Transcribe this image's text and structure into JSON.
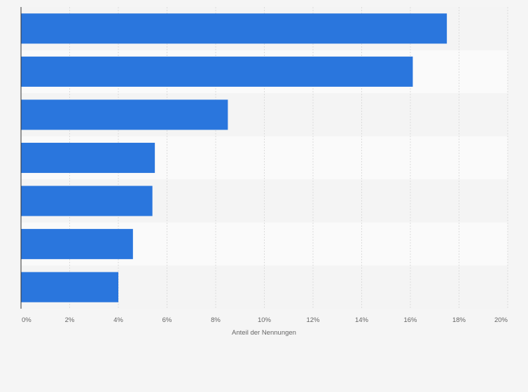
{
  "chart_data": {
    "type": "bar",
    "orientation": "horizontal",
    "categories": [
      "",
      "",
      "",
      "",
      "",
      "",
      ""
    ],
    "values": [
      17.5,
      16.1,
      8.5,
      5.5,
      5.4,
      4.6,
      4.0
    ],
    "xlabel": "Anteil der Nennungen",
    "ylabel": "",
    "xlim": [
      0,
      20
    ],
    "xticks": [
      0,
      2,
      4,
      6,
      8,
      10,
      12,
      14,
      16,
      18,
      20
    ],
    "xtick_labels": [
      "0%",
      "2%",
      "4%",
      "6%",
      "8%",
      "10%",
      "12%",
      "14%",
      "16%",
      "18%",
      "20%"
    ],
    "grid": true,
    "legend": "none",
    "bar_color": "#2a76dd",
    "band_colors": [
      "#f4f4f4",
      "#fafafa"
    ],
    "grid_color": "#dcdcdc",
    "axis_color": "#333333"
  }
}
